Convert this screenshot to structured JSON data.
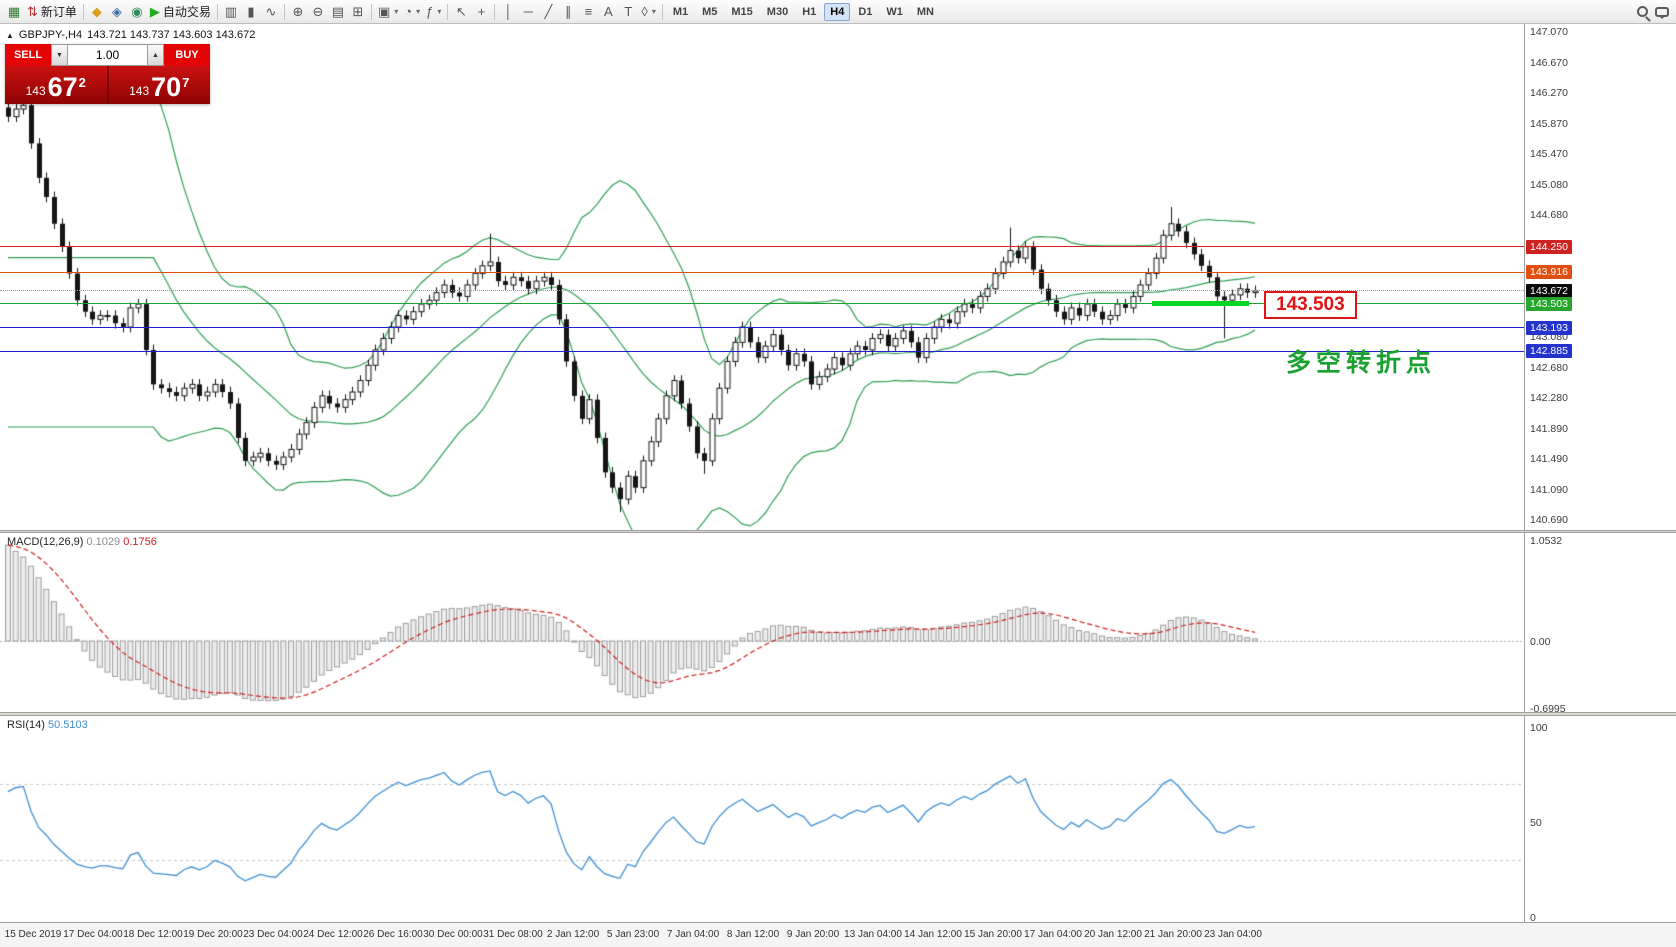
{
  "icons": {
    "dropdown": "▾",
    "spin_up": "▲",
    "spin_down": "▼",
    "collapse": "▲"
  },
  "toolbar": {
    "groups": [
      {
        "items": [
          {
            "name": "terminal-icon",
            "glyph": "▦",
            "color": "#2e7d32",
            "interactable": false
          },
          {
            "name": "new-order-button",
            "glyph": "⇅",
            "color": "#b03030",
            "label": "新订单",
            "interactable": true
          }
        ]
      },
      {
        "items": [
          {
            "name": "favorites-icon",
            "glyph": "◆",
            "color": "#d8a018",
            "interactable": true
          },
          {
            "name": "profile-icon",
            "glyph": "◈",
            "color": "#3a6ea5",
            "interactable": true
          },
          {
            "name": "community-icon",
            "glyph": "◉",
            "color": "#2e8b57",
            "interactable": true
          },
          {
            "name": "autotrading-button",
            "glyph": "▶",
            "color": "#1faa1f",
            "label": "自动交易",
            "interactable": true
          }
        ]
      },
      {
        "items": [
          {
            "name": "bar-chart-button",
            "glyph": "▥",
            "interactable": true
          },
          {
            "name": "candlestick-chart-button",
            "glyph": "▮",
            "interactable": true
          },
          {
            "name": "line-chart-button",
            "glyph": "∿",
            "interactable": true
          }
        ]
      },
      {
        "items": [
          {
            "name": "zoom-in-button",
            "glyph": "⊕",
            "interactable": true
          },
          {
            "name": "zoom-out-button",
            "glyph": "⊖",
            "interactable": true
          },
          {
            "name": "tile-windows-button",
            "glyph": "▤",
            "interactable": true
          },
          {
            "name": "grid-button",
            "glyph": "⊞",
            "interactable": true
          }
        ]
      },
      {
        "items": [
          {
            "name": "new-chart-button",
            "glyph": "▣",
            "caret": true,
            "interactable": true
          },
          {
            "name": "periods-button",
            "glyph": "◔",
            "caret": true,
            "interactable": true
          },
          {
            "name": "indicators-button",
            "glyph": "ƒ",
            "caret": true,
            "interactable": true
          }
        ]
      },
      {
        "items": [
          {
            "name": "cursor-button",
            "glyph": "↖",
            "interactable": true
          },
          {
            "name": "crosshair-button",
            "glyph": "+",
            "interactable": true
          }
        ]
      },
      {
        "items": [
          {
            "name": "vertical-line-button",
            "glyph": "│",
            "interactable": true
          },
          {
            "name": "horizontal-line-button",
            "glyph": "─",
            "interactable": true
          },
          {
            "name": "trendline-button",
            "glyph": "╱",
            "interactable": true
          },
          {
            "name": "channel-button",
            "glyph": "∥",
            "interactable": true
          },
          {
            "name": "fibonacci-button",
            "glyph": "≡",
            "interactable": true
          },
          {
            "name": "text-button",
            "glyph": "A",
            "interactable": true
          },
          {
            "name": "label-button",
            "glyph": "T",
            "interactable": true
          },
          {
            "name": "shapes-button",
            "glyph": "◊",
            "caret": true,
            "interactable": true
          }
        ]
      }
    ],
    "timeframes": {
      "items": [
        "M1",
        "M5",
        "M15",
        "M30",
        "H1",
        "H4",
        "D1",
        "W1",
        "MN"
      ],
      "active": "H4"
    },
    "right_icons": [
      {
        "name": "search-icon",
        "shape": "magnifier"
      },
      {
        "name": "chat-icon",
        "shape": "bubble"
      }
    ]
  },
  "chart_info": {
    "symbol_period": "GBPJPY-,H4",
    "ohlc": "143.721 143.737 143.603 143.672"
  },
  "one_click": {
    "sell_label": "SELL",
    "buy_label": "BUY",
    "volume": "1.00",
    "bid": {
      "prefix": "143",
      "big": "67",
      "sup": "2"
    },
    "ask": {
      "prefix": "143",
      "big": "70",
      "sup": "7"
    }
  },
  "annotations": {
    "price_label": "143.503",
    "turn_text": "多空转折点",
    "turn_text_color": "#18a12e",
    "highlight_color": "#00d525"
  },
  "chart_data": {
    "type": "candlestick",
    "symbol": "GBPJPY-",
    "timeframe": "H4",
    "y_axis_labels": [
      "147.070",
      "146.670",
      "146.270",
      "145.870",
      "145.470",
      "145.080",
      "144.680",
      "144.280",
      "143.880",
      "143.480",
      "143.080",
      "142.680",
      "142.280",
      "141.890",
      "141.490",
      "141.090",
      "140.690"
    ],
    "x_labels": [
      "15 Dec 2019",
      "17 Dec 04:00",
      "18 Dec 12:00",
      "19 Dec 20:00",
      "23 Dec 04:00",
      "24 Dec 12:00",
      "26 Dec 16:00",
      "30 Dec 00:00",
      "31 Dec 08:00",
      "2 Jan 12:00",
      "5 Jan 23:00",
      "7 Jan 04:00",
      "8 Jan 12:00",
      "9 Jan 20:00",
      "13 Jan 04:00",
      "14 Jan 12:00",
      "15 Jan 20:00",
      "17 Jan 04:00",
      "20 Jan 12:00",
      "21 Jan 20:00",
      "23 Jan 04:00"
    ],
    "closes": [
      145.95,
      146.05,
      146.1,
      145.6,
      145.15,
      144.9,
      144.55,
      144.25,
      143.9,
      143.55,
      143.4,
      143.3,
      143.35,
      143.35,
      143.25,
      143.2,
      143.45,
      143.5,
      142.9,
      142.45,
      142.4,
      142.35,
      142.3,
      142.4,
      142.45,
      142.3,
      142.35,
      142.45,
      142.35,
      142.2,
      141.75,
      141.45,
      141.5,
      141.55,
      141.45,
      141.4,
      141.5,
      141.6,
      141.8,
      141.95,
      142.15,
      142.3,
      142.2,
      142.15,
      142.25,
      142.35,
      142.5,
      142.7,
      142.9,
      143.05,
      143.2,
      143.35,
      143.3,
      143.4,
      143.5,
      143.55,
      143.65,
      143.75,
      143.65,
      143.6,
      143.75,
      143.9,
      144.0,
      144.05,
      143.8,
      143.75,
      143.85,
      143.8,
      143.7,
      143.8,
      143.85,
      143.75,
      143.3,
      142.75,
      142.3,
      142.0,
      142.25,
      141.75,
      141.3,
      141.1,
      140.95,
      141.25,
      141.1,
      141.45,
      141.7,
      142.0,
      142.3,
      142.5,
      142.2,
      141.9,
      141.55,
      141.45,
      142.0,
      142.4,
      142.75,
      143.0,
      143.2,
      143.0,
      142.8,
      142.95,
      143.1,
      142.9,
      142.7,
      142.85,
      142.75,
      142.45,
      142.55,
      142.65,
      142.8,
      142.7,
      142.85,
      142.95,
      142.9,
      143.05,
      143.1,
      142.95,
      143.05,
      143.15,
      143.0,
      142.8,
      143.05,
      143.2,
      143.3,
      143.25,
      143.4,
      143.5,
      143.45,
      143.6,
      143.7,
      143.9,
      144.05,
      144.2,
      144.1,
      144.25,
      143.95,
      143.7,
      143.55,
      143.4,
      143.3,
      143.45,
      143.35,
      143.5,
      143.4,
      143.3,
      143.35,
      143.5,
      143.45,
      143.6,
      143.75,
      143.9,
      144.1,
      144.4,
      144.55,
      144.45,
      144.3,
      144.15,
      144.0,
      143.85,
      143.6,
      143.55,
      143.62,
      143.7,
      143.65,
      143.672
    ],
    "spikes": [
      [
        0,
        146.35,
        null
      ],
      [
        2,
        146.32,
        null
      ],
      [
        63,
        144.42,
        null
      ],
      [
        80,
        null,
        140.78
      ],
      [
        91,
        null,
        141.28
      ],
      [
        131,
        144.5,
        null
      ],
      [
        152,
        144.77,
        null
      ],
      [
        159,
        null,
        143.05
      ]
    ],
    "bollinger": {
      "period": 20,
      "deviation": 2,
      "color": "#2f9e54"
    },
    "hlines": [
      {
        "price": 144.25,
        "color": "#d81e1e",
        "style": "solid"
      },
      {
        "price": 143.916,
        "color": "#e04e10",
        "style": "solid"
      },
      {
        "price": 143.672,
        "color": "#999999",
        "style": "dotted"
      },
      {
        "price": 143.503,
        "color": "#1fa32f",
        "style": "solid"
      },
      {
        "price": 143.193,
        "color": "#2020cc",
        "style": "solid"
      },
      {
        "price": 142.885,
        "color": "#2020cc",
        "style": "solid"
      }
    ],
    "price_badges": [
      {
        "text": "144.250",
        "price": 144.25,
        "color": "#cc2222"
      },
      {
        "text": "143.916",
        "price": 143.916,
        "color": "#e04e10"
      },
      {
        "text": "143.672",
        "price": 143.672,
        "color": "#0a0a0a"
      },
      {
        "text": "143.503",
        "price": 143.503,
        "color": "#27a62e"
      },
      {
        "text": "143.193",
        "price": 143.193,
        "color": "#2433cc"
      },
      {
        "text": "142.885",
        "price": 142.885,
        "color": "#2433cc"
      }
    ],
    "macd": {
      "label": "MACD(12,26,9)",
      "value_main": "0.1029",
      "value_signal": "0.1756",
      "axis_labels": [
        "1.0532",
        "0.00",
        "-0.6995"
      ],
      "vmax": 1.0532,
      "vmin": -0.6995
    },
    "rsi": {
      "label": "RSI(14)",
      "value": "50.5103",
      "axis_labels": [
        "100",
        "50",
        "0"
      ],
      "levels": [
        70,
        30
      ]
    }
  }
}
